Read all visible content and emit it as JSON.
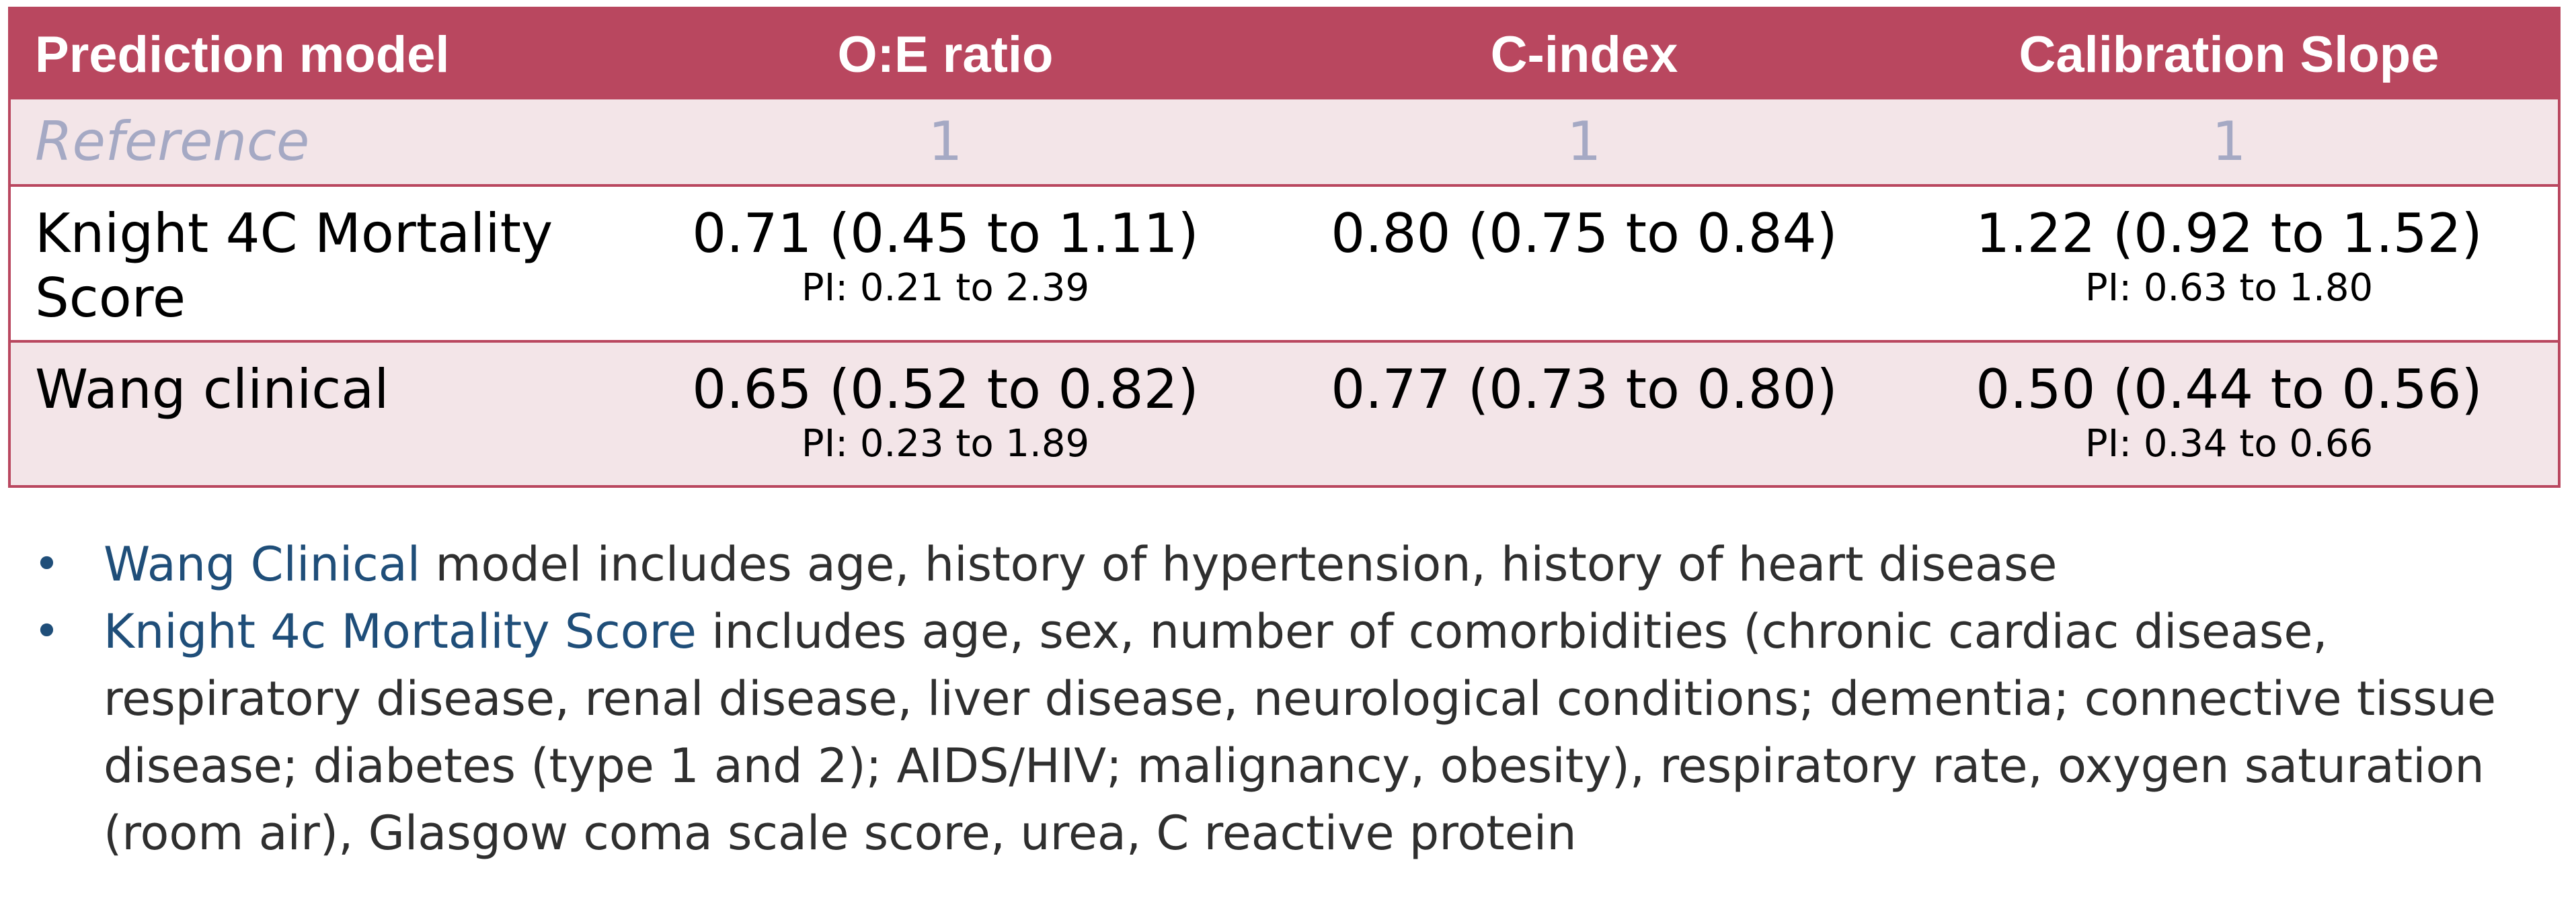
{
  "colors": {
    "header_bg": "#b9475f",
    "shaded_row_bg": "#f3e5e8",
    "reference_text": "#a5a9c4",
    "highlight_text": "#1f4e79"
  },
  "table": {
    "headers": [
      "Prediction model",
      "O:E ratio",
      "C-index",
      "Calibration Slope"
    ],
    "reference": {
      "label": "Reference",
      "oe": "1",
      "cindex": "1",
      "slope": "1"
    },
    "rows": [
      {
        "model": "Knight 4C Mortality Score",
        "oe": "0.71 (0.45 to 1.11)",
        "oe_pi": "PI: 0.21 to 2.39",
        "cindex": "0.80 (0.75 to 0.84)",
        "slope": "1.22 (0.92 to 1.52)",
        "slope_pi": "PI: 0.63 to 1.80"
      },
      {
        "model": "Wang clinical",
        "oe": "0.65 (0.52 to 0.82)",
        "oe_pi": "PI: 0.23 to 1.89",
        "cindex": "0.77 (0.73 to 0.80)",
        "slope": "0.50 (0.44 to 0.56)",
        "slope_pi": "PI: 0.34 to 0.66"
      }
    ]
  },
  "notes": [
    {
      "bullet": "•",
      "highlight": "Wang Clinical",
      "text": " model includes age, history of hypertension, history of heart disease"
    },
    {
      "bullet": "•",
      "highlight": "Knight 4c Mortality Score",
      "text": " includes age, sex, number of comorbidities (chronic cardiac disease, respiratory disease, renal disease, liver disease, neurological conditions; dementia; connective tissue disease; diabetes (type 1 and 2); AIDS/HIV; malignancy, obesity), respiratory rate, oxygen saturation (room air), Glasgow coma scale score, urea, C reactive protein"
    }
  ]
}
